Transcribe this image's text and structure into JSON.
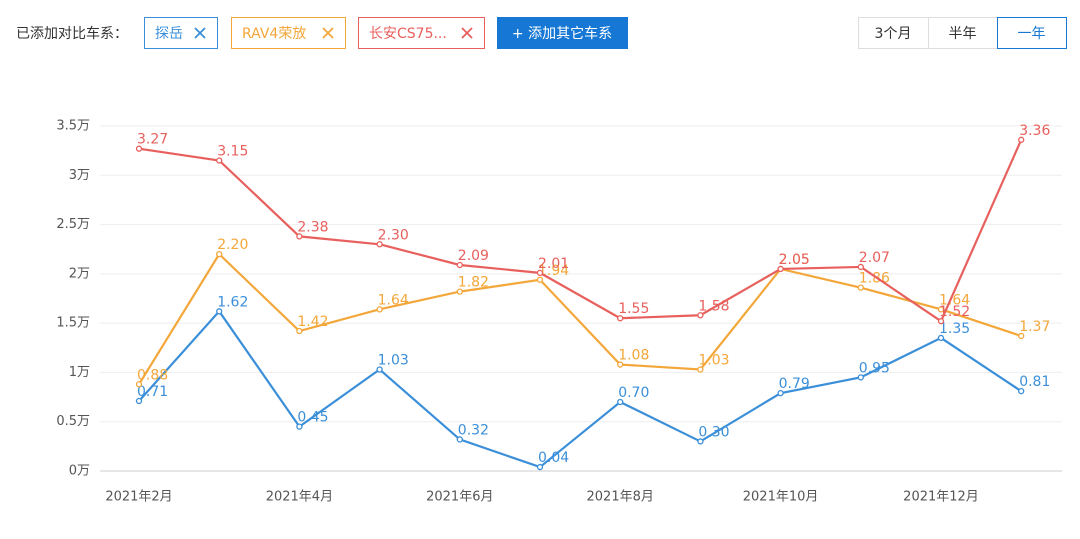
{
  "ui": {
    "compare_label": "已添加对比车系：",
    "add_button": "+ 添加其它车系",
    "range_buttons": [
      "3个月",
      "半年",
      "一年"
    ],
    "selected_range": 2
  },
  "chart_data": {
    "type": "line",
    "categories": [
      "2021年2月",
      null,
      "2021年4月",
      null,
      "2021年6月",
      null,
      "2021年8月",
      null,
      "2021年10月",
      null,
      "2021年12月",
      null
    ],
    "series": [
      {
        "name": "探岳",
        "color": "#3b8fd9",
        "values": [
          0.71,
          1.62,
          0.45,
          1.03,
          0.32,
          0.04,
          0.7,
          0.3,
          0.79,
          0.95,
          1.35,
          0.81
        ],
        "value_labels": [
          "0.71",
          "1.62",
          "0.45",
          "1.03",
          "0.32",
          "0.04",
          "0.70",
          "0.30",
          "0.79",
          "0.95",
          "1.35",
          "0.81"
        ]
      },
      {
        "name": "RAV4荣放",
        "color": "#f3a73a",
        "values": [
          0.88,
          2.2,
          1.42,
          1.64,
          1.82,
          1.94,
          1.08,
          1.03,
          2.05,
          1.86,
          1.64,
          1.37
        ],
        "value_labels": [
          "0.88",
          "2.20",
          "1.42",
          "1.64",
          "1.82",
          "1.94",
          "1.08",
          "1.03",
          "2.05",
          "1.86",
          "1.64",
          "1.37"
        ]
      },
      {
        "name": "长安CS75...",
        "color": "#e8605d",
        "values": [
          3.27,
          3.15,
          2.38,
          2.3,
          2.09,
          2.01,
          1.55,
          1.58,
          2.05,
          2.07,
          1.52,
          3.36
        ],
        "value_labels": [
          "3.27",
          "3.15",
          "2.38",
          "2.30",
          "2.09",
          "2.01",
          "1.55",
          "1.58",
          "2.05",
          "2.07",
          "1.52",
          "3.36"
        ]
      }
    ],
    "ylim": [
      0,
      3.5
    ],
    "yticks": [
      {
        "value": 0,
        "label": "0万"
      },
      {
        "value": 0.5,
        "label": "0.5万"
      },
      {
        "value": 1,
        "label": "1万"
      },
      {
        "value": 1.5,
        "label": "1.5万"
      },
      {
        "value": 2,
        "label": "2万"
      },
      {
        "value": 2.5,
        "label": "2.5万"
      },
      {
        "value": 3,
        "label": "3万"
      },
      {
        "value": 3.5,
        "label": "3.5万"
      }
    ],
    "grid": true
  }
}
